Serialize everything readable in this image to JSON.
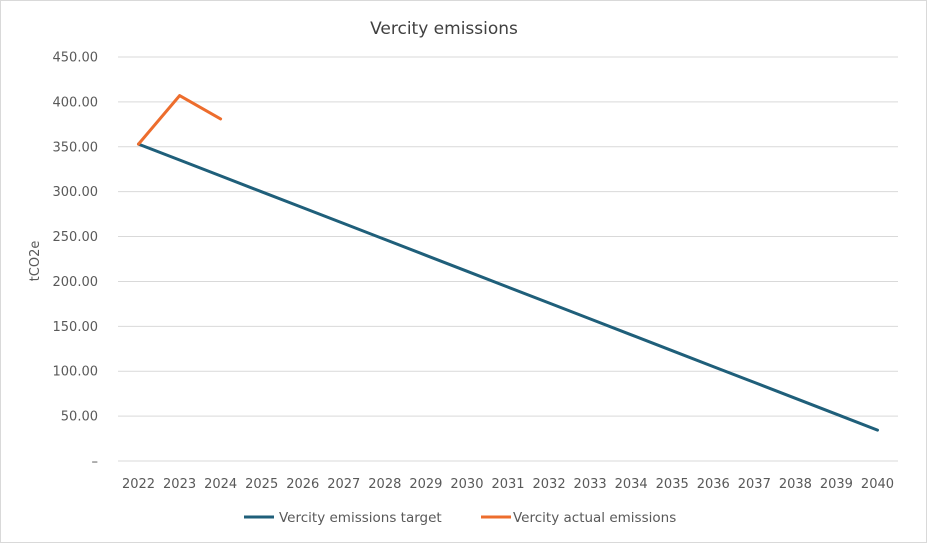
{
  "chart_data": {
    "type": "line",
    "title": "Vercity emissions",
    "xlabel": "",
    "ylabel": "tCO2e",
    "categories": [
      "2022",
      "2023",
      "2024",
      "2025",
      "2026",
      "2027",
      "2028",
      "2029",
      "2030",
      "2031",
      "2032",
      "2033",
      "2034",
      "2035",
      "2036",
      "2037",
      "2038",
      "2039",
      "2040"
    ],
    "y_ticks": [
      "–",
      "50.00",
      "100.00",
      "150.00",
      "200.00",
      "250.00",
      "300.00",
      "350.00",
      "400.00",
      "450.00"
    ],
    "ylim": [
      0,
      450
    ],
    "grid": true,
    "legend_position": "bottom",
    "series": [
      {
        "name": "Vercity emissions target",
        "color": "#1f5f7a",
        "values": [
          353,
          335.3,
          317.6,
          299.9,
          282.2,
          264.5,
          246.8,
          229.1,
          211.4,
          193.7,
          176,
          158.3,
          140.6,
          122.9,
          105.2,
          87.5,
          69.8,
          52.1,
          34.4
        ]
      },
      {
        "name": "Vercity actual emissions",
        "color": "#ed6d2d",
        "values": [
          353,
          407,
          381,
          null,
          null,
          null,
          null,
          null,
          null,
          null,
          null,
          null,
          null,
          null,
          null,
          null,
          null,
          null,
          null
        ]
      }
    ]
  }
}
